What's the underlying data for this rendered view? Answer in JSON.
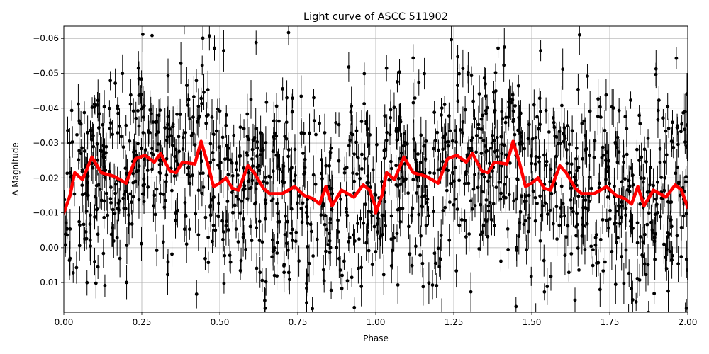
{
  "chart_data": {
    "type": "scatter",
    "title": "Light curve of ASCC 511902",
    "xlabel": "Phase",
    "ylabel": "Δ Magnitude",
    "xlim": [
      0,
      2
    ],
    "ylim": [
      0.0185,
      -0.0635
    ],
    "y_inverted": true,
    "grid": true,
    "legend": "none",
    "x_ticks": [
      0.0,
      0.25,
      0.5,
      0.75,
      1.0,
      1.25,
      1.5,
      1.75,
      2.0
    ],
    "x_tick_labels": [
      "0.00",
      "0.25",
      "0.50",
      "0.75",
      "1.00",
      "1.25",
      "1.50",
      "1.75",
      "2.00"
    ],
    "y_ticks": [
      0.01,
      0.0,
      -0.01,
      -0.02,
      -0.03,
      -0.04,
      -0.05,
      -0.06
    ],
    "y_tick_labels": [
      "0.01",
      "0.00",
      "−0.01",
      "−0.02",
      "−0.03",
      "−0.04",
      "−0.05",
      "−0.06"
    ],
    "series": [
      {
        "kind": "scatter-errorbar",
        "color": "#000000",
        "approx_point_count": 1400,
        "mean": -0.018,
        "std_dev": 0.015,
        "typical_error": 0.004
      },
      {
        "kind": "line",
        "color": "#ff0000",
        "x": [
          0.0,
          0.02,
          0.035,
          0.06,
          0.09,
          0.12,
          0.16,
          0.2,
          0.23,
          0.26,
          0.29,
          0.31,
          0.34,
          0.36,
          0.38,
          0.42,
          0.44,
          0.46,
          0.48,
          0.5,
          0.52,
          0.54,
          0.56,
          0.59,
          0.61,
          0.64,
          0.66,
          0.7,
          0.72,
          0.74,
          0.77,
          0.8,
          0.82,
          0.84,
          0.86,
          0.89,
          0.93,
          0.96,
          0.98,
          1.0
        ],
        "y": [
          -0.01,
          -0.015,
          -0.0215,
          -0.0195,
          -0.026,
          -0.0215,
          -0.0205,
          -0.0185,
          -0.0255,
          -0.0265,
          -0.0245,
          -0.027,
          -0.022,
          -0.0215,
          -0.0245,
          -0.024,
          -0.0305,
          -0.0245,
          -0.0175,
          -0.0185,
          -0.02,
          -0.017,
          -0.0165,
          -0.0235,
          -0.0215,
          -0.017,
          -0.0155,
          -0.0155,
          -0.0165,
          -0.0175,
          -0.015,
          -0.014,
          -0.0125,
          -0.0175,
          -0.012,
          -0.0165,
          -0.0145,
          -0.018,
          -0.0165,
          -0.0115
        ]
      }
    ]
  }
}
